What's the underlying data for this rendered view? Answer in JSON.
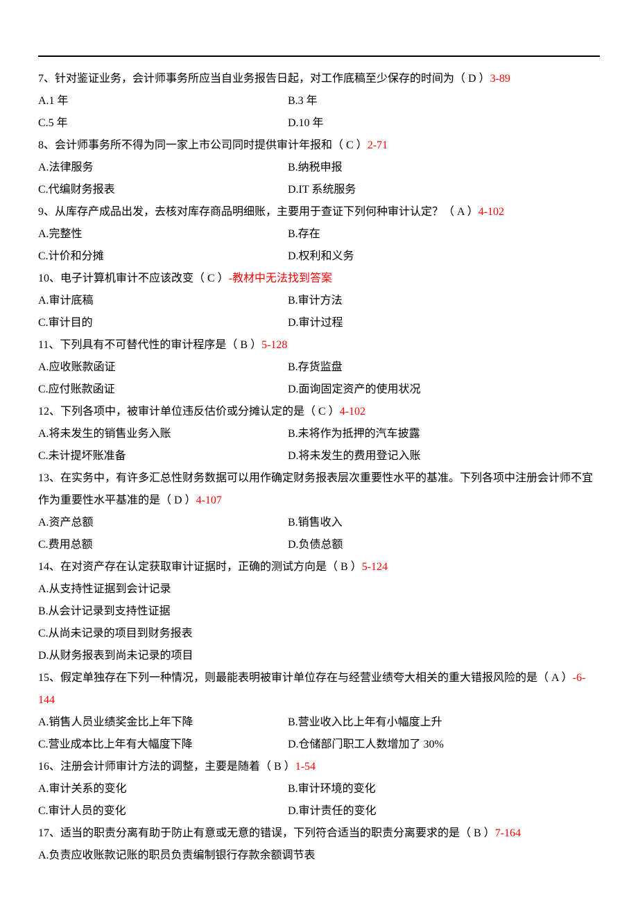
{
  "questions": [
    {
      "num": "7",
      "text": "、针对鉴证业务，会计师事务所应当自业务报告日起，对工作底稿至少保存的时间为（ D ）",
      "ref": "3-89",
      "optA": "A.1 年",
      "optB": "B.3 年",
      "optC": "C.5 年",
      "optD": "D.10 年"
    },
    {
      "num": "8",
      "text": "、会计师事务所不得为同一家上市公司同时提供审计年报和（ C ）",
      "ref": "2-71",
      "optA": "A.法律服务",
      "optB": "B.纳税申报",
      "optC": "C.代编财务报表",
      "optD": "D.IT 系统服务"
    },
    {
      "num": "9",
      "text": "、从库存产成品出发，去核对库存商品明细账，主要用于查证下列何种审计认定？（ A ）",
      "ref": "4-102",
      "optA": "A.完整性",
      "optB": "B.存在",
      "optC": "C.计价和分摊",
      "optD": "D.权利和义务"
    },
    {
      "num": "10",
      "text": "、电子计算机审计不应该改变（ C ）",
      "ref": "-教材中无法找到答案",
      "optA": "A.审计底稿",
      "optB": "B.审计方法",
      "optC": "C.审计目的",
      "optD": "D.审计过程"
    },
    {
      "num": "11",
      "text": "、下列具有不可替代性的审计程序是（ B ）",
      "ref": "5-128",
      "optA": "A.应收账款函证",
      "optB": "B.存货监盘",
      "optC": "C.应付账款函证",
      "optD": "D.面询固定资产的使用状况"
    },
    {
      "num": "12",
      "text": "、下列各项中，被审计单位违反估价或分摊认定的是（ C ）",
      "ref": "4-102",
      "optA": "A.将未发生的销售业务入账",
      "optB": "B.未将作为抵押的汽车披露",
      "optC": "C.未计提坏账准备",
      "optD": "D.将未发生的费用登记入账"
    },
    {
      "num": "13",
      "text": "、在实务中，有许多汇总性财务数据可以用作确定财务报表层次重要性水平的基准。下列各项中注册会计师不宜作为重要性水平基准的是（ D ）",
      "ref": "4-107",
      "optA": "A.资产总额",
      "optB": "B.销售收入",
      "optC": "C.费用总额",
      "optD": "D.负债总额"
    },
    {
      "num": "14",
      "text": "、在对资产存在认定获取审计证据时，正确的测试方向是（ B ）",
      "ref": "5-124",
      "optA": "A.从支持性证据到会计记录",
      "optB": "B.从会计记录到支持性证据",
      "optC": "C.从尚未记录的项目到财务报表",
      "optD": "D.从财务报表到尚未记录的项目"
    },
    {
      "num": "15",
      "text": "、假定单独存在下列一种情况，则最能表明被审计单位存在与经营业绩夸大相关的重大错报风险的是（ A ）",
      "ref": "-6-144",
      "optA": "A.销售人员业绩奖金比上年下降",
      "optB": "B.营业收入比上年有小幅度上升",
      "optC": "C.营业成本比上年有大幅度下降",
      "optD": "D.仓储部门职工人数增加了 30%"
    },
    {
      "num": "16",
      "text": "、注册会计师审计方法的调整，主要是随着（ B ）",
      "ref": "1-54",
      "optA": "A.审计关系的变化",
      "optB": "B.审计环境的变化",
      "optC": "C.审计人员的变化",
      "optD": "D.审计责任的变化"
    },
    {
      "num": "17",
      "text": "、适当的职责分离有助于防止有意或无意的错误，下列符合适当的职责分离要求的是（ B ）",
      "ref": "7-164",
      "optA": "A.负责应收账款记账的职员负责编制银行存款余额调节表"
    }
  ]
}
